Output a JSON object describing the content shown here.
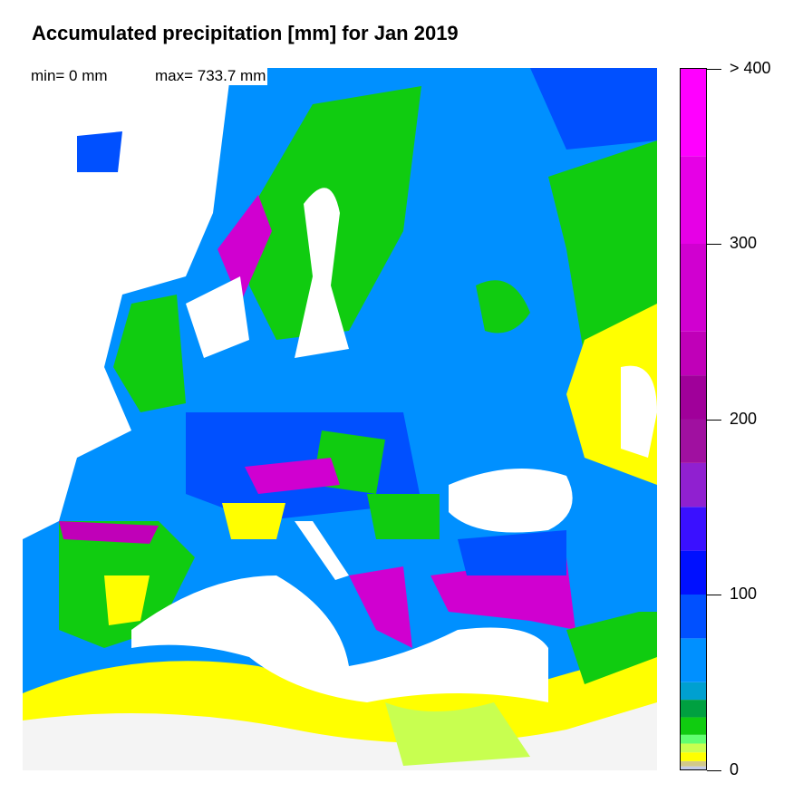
{
  "title": "Accumulated precipitation [mm] for Jan 2019",
  "stats": {
    "min": "min= 0 mm",
    "max": "max= 733.7 mm"
  },
  "colorbar": {
    "min": 0,
    "max": 400,
    "tick_labels": [
      {
        "value": 0,
        "label": "0"
      },
      {
        "value": 100,
        "label": "100"
      },
      {
        "value": 200,
        "label": "200"
      },
      {
        "value": 300,
        "label": "300"
      },
      {
        "value": 400,
        "label": "> 400"
      }
    ],
    "bins": [
      {
        "from": 0,
        "to": 2,
        "color": "#c4cbe8"
      },
      {
        "from": 2,
        "to": 5,
        "color": "#d2c98a"
      },
      {
        "from": 5,
        "to": 10,
        "color": "#ffff00"
      },
      {
        "from": 10,
        "to": 15,
        "color": "#c8ff50"
      },
      {
        "from": 15,
        "to": 20,
        "color": "#60ff70"
      },
      {
        "from": 20,
        "to": 30,
        "color": "#10cc10"
      },
      {
        "from": 30,
        "to": 40,
        "color": "#00a040"
      },
      {
        "from": 40,
        "to": 50,
        "color": "#00a0d0"
      },
      {
        "from": 50,
        "to": 75,
        "color": "#0090ff"
      },
      {
        "from": 75,
        "to": 100,
        "color": "#0050ff"
      },
      {
        "from": 100,
        "to": 125,
        "color": "#0010ff"
      },
      {
        "from": 125,
        "to": 150,
        "color": "#3a10ff"
      },
      {
        "from": 150,
        "to": 175,
        "color": "#9020d0"
      },
      {
        "from": 175,
        "to": 200,
        "color": "#a010a0"
      },
      {
        "from": 200,
        "to": 225,
        "color": "#a0009a"
      },
      {
        "from": 225,
        "to": 250,
        "color": "#c000b8"
      },
      {
        "from": 250,
        "to": 300,
        "color": "#d000d0"
      },
      {
        "from": 300,
        "to": 350,
        "color": "#e600e6"
      },
      {
        "from": 350,
        "to": 400,
        "color": "#ff00ff"
      }
    ]
  }
}
